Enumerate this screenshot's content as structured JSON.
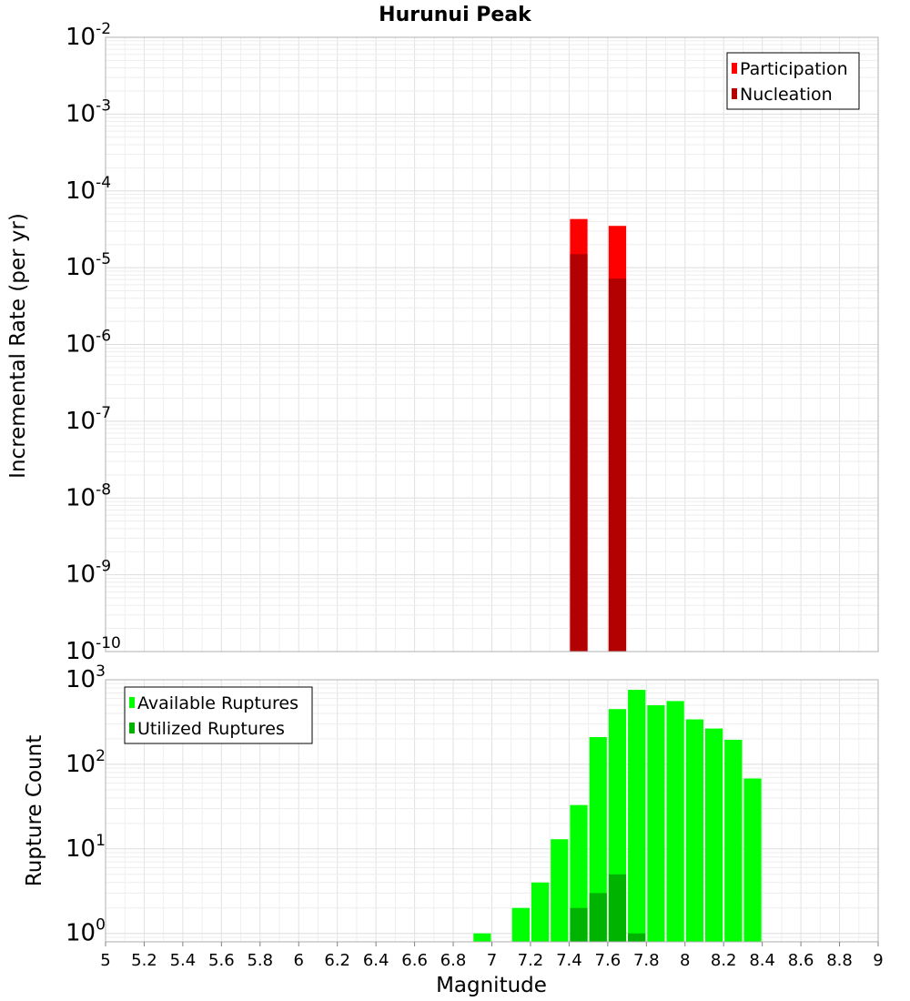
{
  "title": "Hurunui Peak",
  "chart_data": [
    {
      "type": "bar",
      "ylabel": "Incremental Rate (per yr)",
      "xlim": [
        5,
        9
      ],
      "ylog": true,
      "ylim_exp": [
        -10,
        -2
      ],
      "ytick_exponents": [
        "-10",
        "-9",
        "-8",
        "-7",
        "-6",
        "-5",
        "-4",
        "-3",
        "-2"
      ],
      "bin_width": 0.1,
      "grid": true,
      "legend_position": "top-right",
      "series": [
        {
          "name": "Participation",
          "color": "#ff0000",
          "x": [
            7.45,
            7.65
          ],
          "values": [
            4.3e-05,
            3.5e-05
          ]
        },
        {
          "name": "Nucleation",
          "color": "#b30000",
          "x": [
            7.45,
            7.65
          ],
          "values": [
            1.5e-05,
            7.2e-06
          ]
        }
      ]
    },
    {
      "type": "bar",
      "ylabel": "Rupture Count",
      "xlabel": "Magnitude",
      "xlim": [
        5,
        9
      ],
      "xticks": [
        "5",
        "5.2",
        "5.4",
        "5.6",
        "5.8",
        "6",
        "6.2",
        "6.4",
        "6.6",
        "6.8",
        "7",
        "7.2",
        "7.4",
        "7.6",
        "7.8",
        "8",
        "8.2",
        "8.4",
        "8.6",
        "8.8",
        "9"
      ],
      "ylog": true,
      "ylim_exp": [
        -0.1,
        3
      ],
      "ytick_exponents": [
        "0",
        "1",
        "2",
        "3"
      ],
      "bin_width": 0.1,
      "grid": true,
      "legend_position": "top-left",
      "series": [
        {
          "name": "Available Ruptures",
          "color": "#00ff00",
          "x": [
            6.95,
            7.15,
            7.25,
            7.35,
            7.45,
            7.55,
            7.65,
            7.75,
            7.85,
            7.95,
            8.05,
            8.15,
            8.25,
            8.35
          ],
          "values": [
            1,
            2,
            4,
            13,
            33,
            210,
            450,
            760,
            500,
            560,
            340,
            265,
            195,
            68
          ]
        },
        {
          "name": "Utilized Ruptures",
          "color": "#00b300",
          "x": [
            7.45,
            7.55,
            7.65,
            7.75
          ],
          "values": [
            2,
            3,
            5,
            1
          ]
        }
      ]
    }
  ]
}
